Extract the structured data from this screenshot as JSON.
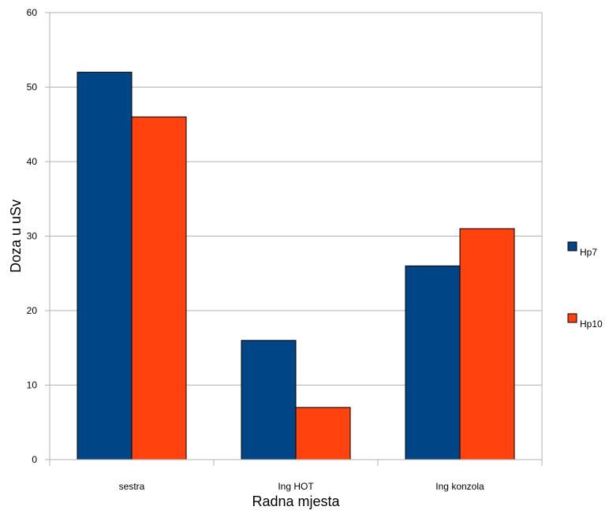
{
  "chart_data": {
    "type": "bar",
    "categories": [
      "sestra",
      "Ing HOT",
      "Ing konzola"
    ],
    "series": [
      {
        "name": "Hp7",
        "values": [
          52,
          16,
          26
        ],
        "color": "#004586"
      },
      {
        "name": "Hp10",
        "values": [
          46,
          7,
          31
        ],
        "color": "#ff420e"
      }
    ],
    "xlabel": "Radna mjesta",
    "ylabel": "Doza u uSv",
    "ylim": [
      0,
      60
    ],
    "yticks": [
      0,
      10,
      20,
      30,
      40,
      50,
      60
    ],
    "grid": true,
    "legend_position": "right"
  }
}
